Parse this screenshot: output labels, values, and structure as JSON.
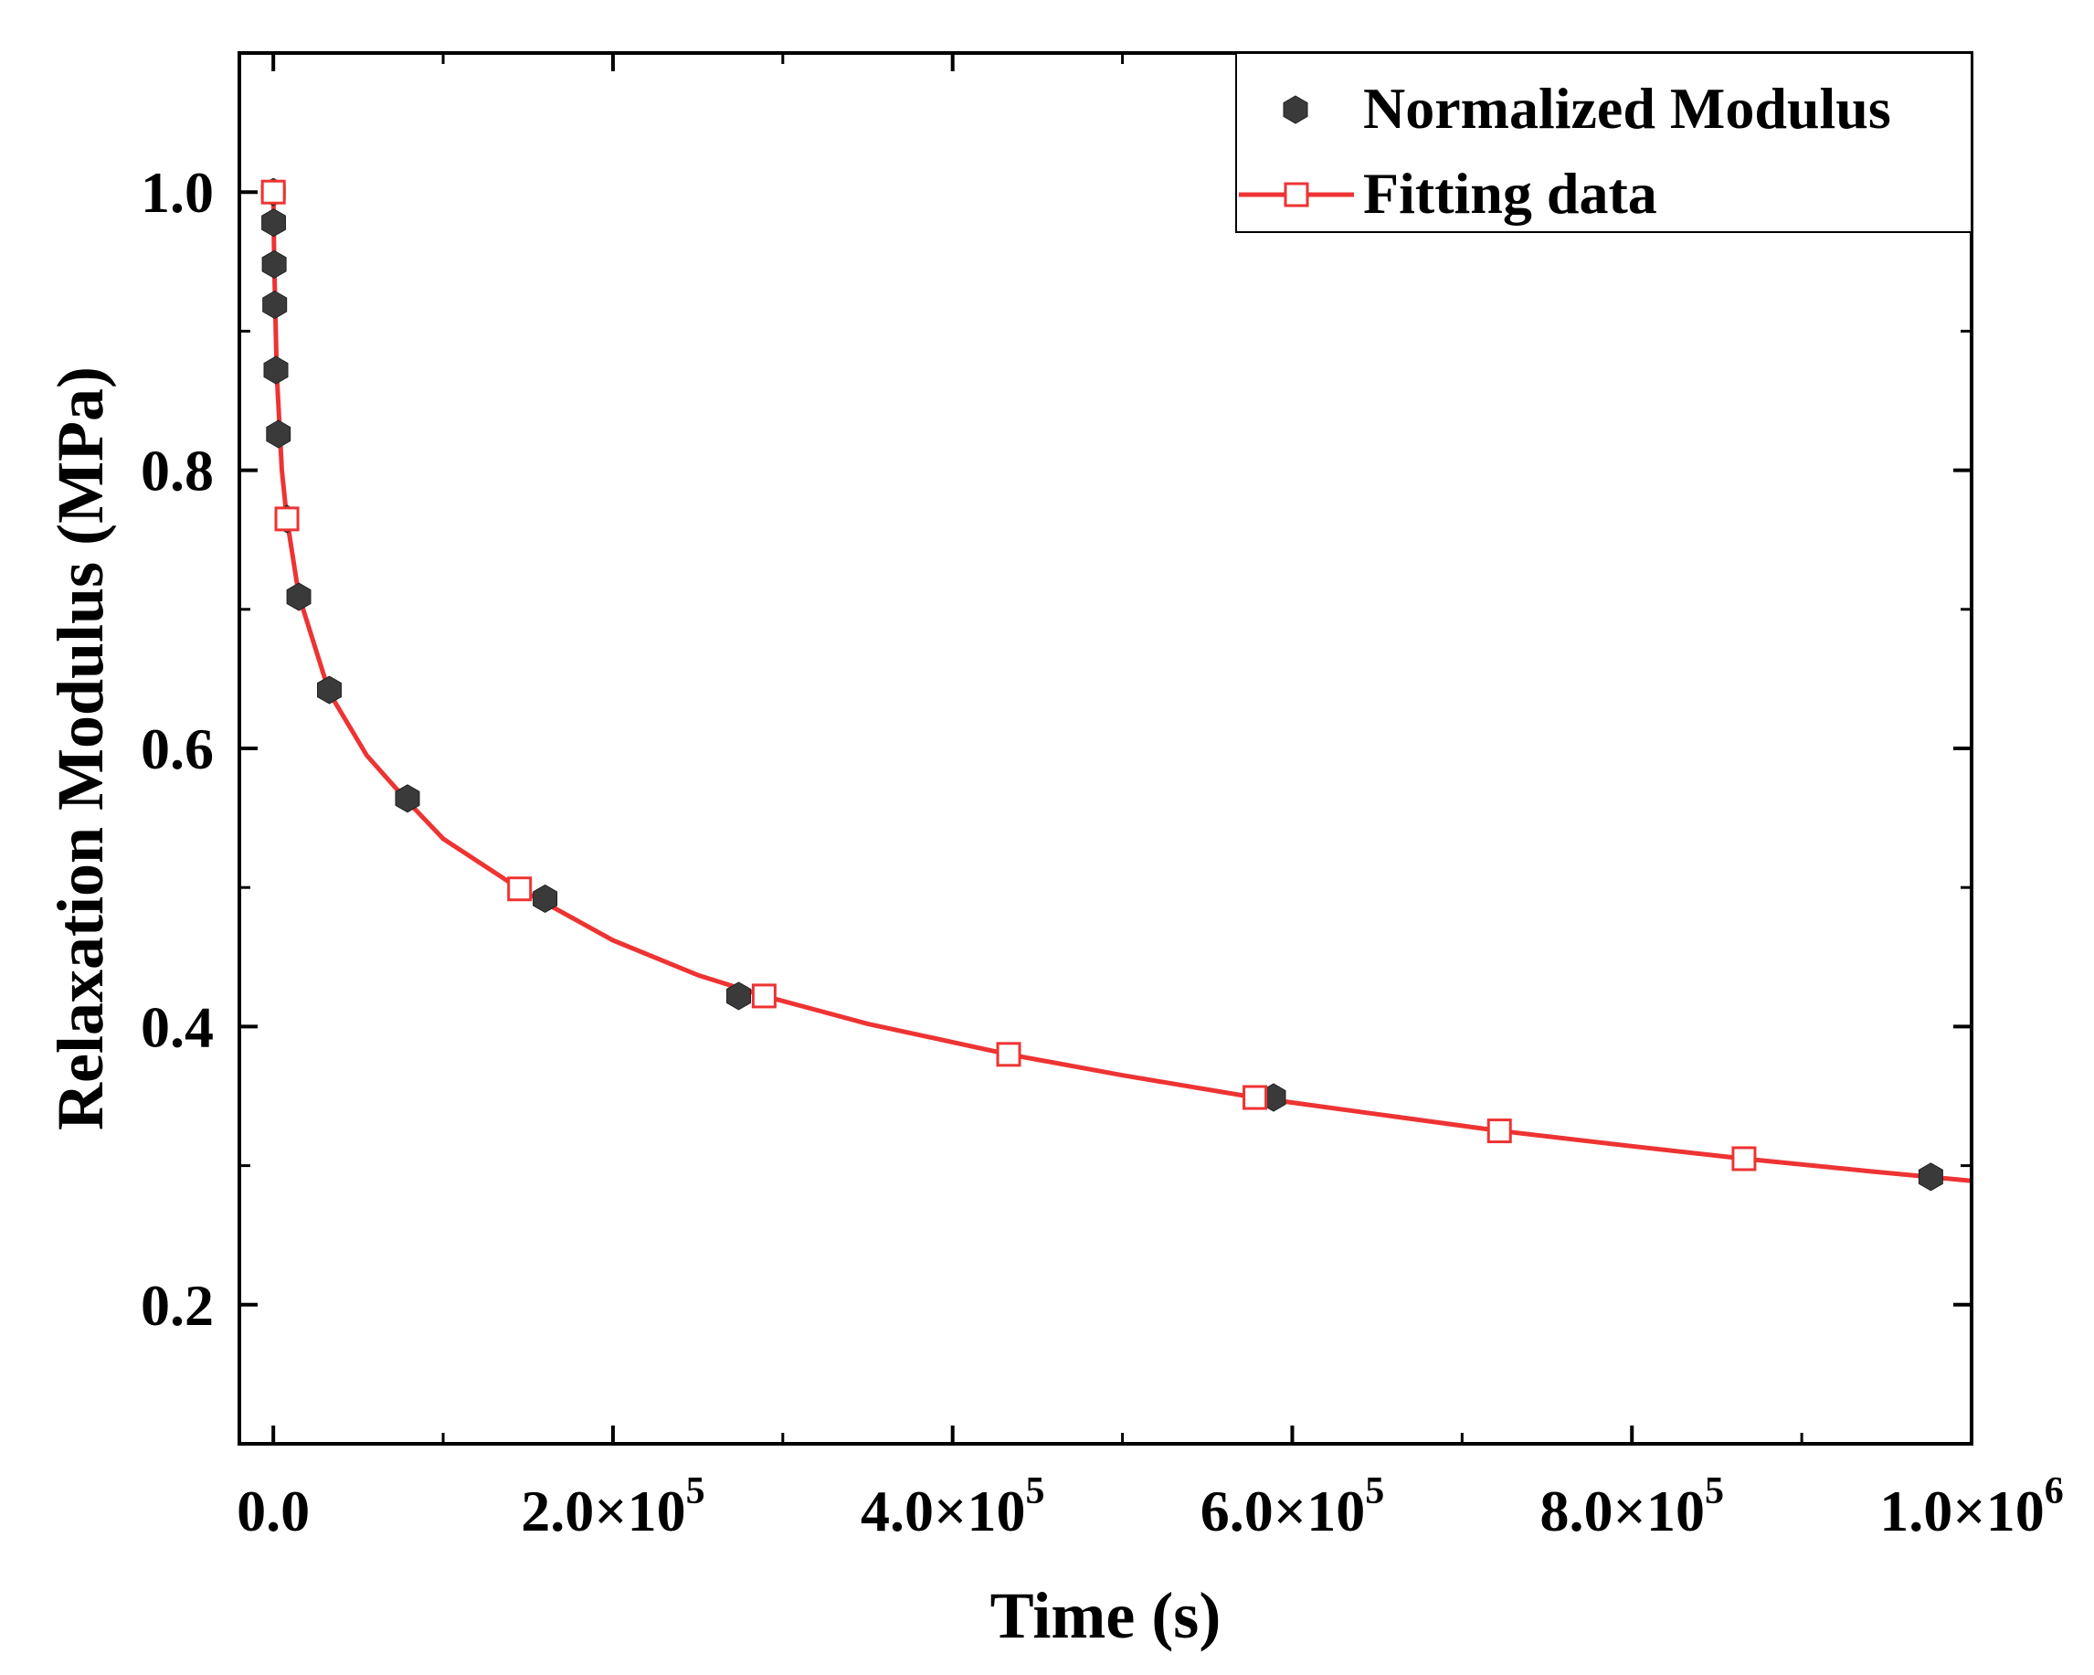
{
  "chart_data": {
    "type": "scatter",
    "title": "",
    "xlabel": "Time (s)",
    "ylabel": "Relaxation Modulus (MPa)",
    "xlim": [
      -20000,
      1000000
    ],
    "ylim": [
      0.1,
      1.1
    ],
    "x_ticks": [
      {
        "value": 0,
        "mantissa": "0.0",
        "exponent": ""
      },
      {
        "value": 200000,
        "mantissa": "2.0×10",
        "exponent": "5"
      },
      {
        "value": 400000,
        "mantissa": "4.0×10",
        "exponent": "5"
      },
      {
        "value": 600000,
        "mantissa": "6.0×10",
        "exponent": "5"
      },
      {
        "value": 800000,
        "mantissa": "8.0×10",
        "exponent": "5"
      },
      {
        "value": 1000000,
        "mantissa": "1.0×10",
        "exponent": "6"
      }
    ],
    "y_ticks": [
      {
        "value": 0.2,
        "label": "0.2"
      },
      {
        "value": 0.4,
        "label": "0.4"
      },
      {
        "value": 0.6,
        "label": "0.6"
      },
      {
        "value": 0.8,
        "label": "0.8"
      },
      {
        "value": 1.0,
        "label": "1.0"
      }
    ],
    "grid": false,
    "legend_position": "top-right",
    "series": [
      {
        "name": "Normalized Modulus",
        "marker": "hexagon",
        "color": "#3a3a3a",
        "points": [
          {
            "x": 0,
            "y": 1.0
          },
          {
            "x": 200,
            "y": 0.978
          },
          {
            "x": 500,
            "y": 0.948
          },
          {
            "x": 800,
            "y": 0.919
          },
          {
            "x": 1500,
            "y": 0.872
          },
          {
            "x": 3000,
            "y": 0.826
          },
          {
            "x": 8000,
            "y": 0.765
          },
          {
            "x": 15000,
            "y": 0.709
          },
          {
            "x": 33000,
            "y": 0.642
          },
          {
            "x": 79000,
            "y": 0.564
          },
          {
            "x": 160000,
            "y": 0.492
          },
          {
            "x": 274000,
            "y": 0.422
          },
          {
            "x": 589000,
            "y": 0.349
          },
          {
            "x": 976000,
            "y": 0.292
          }
        ]
      },
      {
        "name": "Fitting data",
        "marker": "square-open",
        "color": "#ee3333",
        "points": [
          {
            "x": 0,
            "y": 1.0
          },
          {
            "x": 8000,
            "y": 0.765
          },
          {
            "x": 145000,
            "y": 0.499
          },
          {
            "x": 289000,
            "y": 0.422
          },
          {
            "x": 433000,
            "y": 0.38
          },
          {
            "x": 578000,
            "y": 0.349
          },
          {
            "x": 722000,
            "y": 0.325
          },
          {
            "x": 866000,
            "y": 0.305
          }
        ],
        "curve": [
          {
            "x": 0,
            "y": 1.0
          },
          {
            "x": 500,
            "y": 0.95
          },
          {
            "x": 2000,
            "y": 0.87
          },
          {
            "x": 5000,
            "y": 0.8
          },
          {
            "x": 8000,
            "y": 0.765
          },
          {
            "x": 15000,
            "y": 0.71
          },
          {
            "x": 33000,
            "y": 0.64
          },
          {
            "x": 55000,
            "y": 0.595
          },
          {
            "x": 79000,
            "y": 0.562
          },
          {
            "x": 100000,
            "y": 0.535
          },
          {
            "x": 145000,
            "y": 0.499
          },
          {
            "x": 200000,
            "y": 0.462
          },
          {
            "x": 250000,
            "y": 0.437
          },
          {
            "x": 289000,
            "y": 0.422
          },
          {
            "x": 350000,
            "y": 0.402
          },
          {
            "x": 433000,
            "y": 0.38
          },
          {
            "x": 500000,
            "y": 0.365
          },
          {
            "x": 578000,
            "y": 0.349
          },
          {
            "x": 650000,
            "y": 0.337
          },
          {
            "x": 722000,
            "y": 0.325
          },
          {
            "x": 800000,
            "y": 0.314
          },
          {
            "x": 866000,
            "y": 0.305
          },
          {
            "x": 940000,
            "y": 0.296
          },
          {
            "x": 1000000,
            "y": 0.289
          }
        ]
      }
    ]
  }
}
